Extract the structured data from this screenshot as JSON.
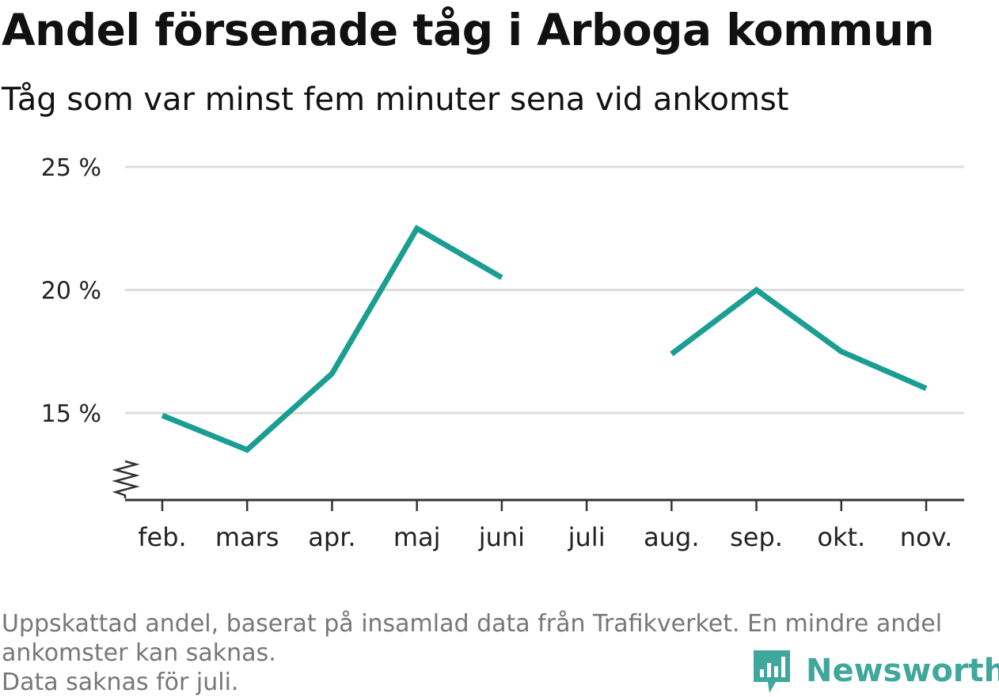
{
  "title": "Andel försenade tåg i Arboga kommun",
  "subtitle": "Tåg som var minst fem minuter sena vid ankomst",
  "chart_data": {
    "type": "line",
    "title": "Andel försenade tåg i Arboga kommun",
    "subtitle": "Tåg som var minst fem minuter sena vid ankomst",
    "categories": [
      "feb.",
      "mars",
      "apr.",
      "maj",
      "juni",
      "juli",
      "aug.",
      "sep.",
      "okt.",
      "nov."
    ],
    "series": [
      {
        "values": [
          14.9,
          13.5,
          16.6,
          22.5,
          20.5,
          null,
          17.4,
          20.0,
          17.5,
          16.0
        ]
      }
    ],
    "ylim": [
      11.5,
      25
    ],
    "yticks": [
      15,
      20,
      25
    ],
    "ytick_labels": [
      "15 %",
      "20 %",
      "25 %"
    ],
    "axis_break": true,
    "grid": true,
    "legend": "none",
    "line_color": "#1a9e93"
  },
  "colors": {
    "line": "#1a9e93",
    "grid": "#dddddd",
    "axis": "#333333",
    "note": "#777777",
    "brand": "#3fa79c"
  },
  "footer": {
    "note_lines": [
      "Uppskattad andel, baserat på insamlad data från Trafikverket. En mindre andel",
      "ankomster kan saknas.",
      "Data saknas för juli."
    ],
    "brand_name": "Newsworthy",
    "brand_icon": "bar-chart-speech-bubble-icon"
  }
}
